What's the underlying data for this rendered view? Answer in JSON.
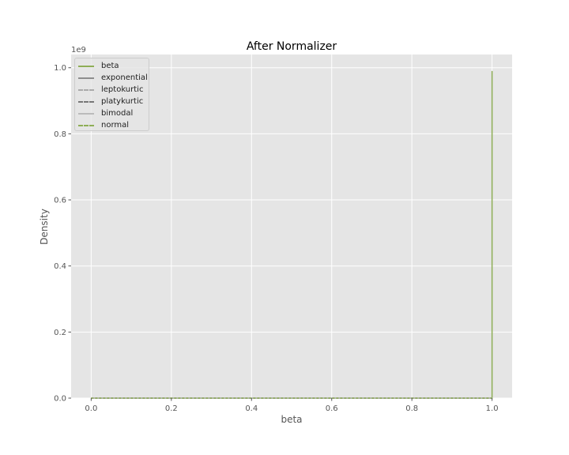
{
  "chart_data": {
    "type": "line",
    "title": "After Normalizer",
    "xlabel": "beta",
    "ylabel": "Density",
    "y_scale_label": "1e9",
    "xlim": [
      -0.05,
      1.05
    ],
    "ylim": [
      0,
      1.04
    ],
    "x_ticks": [
      0.0,
      0.2,
      0.4,
      0.6,
      0.8,
      1.0
    ],
    "x_tick_labels": [
      "0.0",
      "0.2",
      "0.4",
      "0.6",
      "0.8",
      "1.0"
    ],
    "y_ticks": [
      0.0,
      0.2,
      0.4,
      0.6,
      0.8,
      1.0
    ],
    "y_tick_labels": [
      "0.0",
      "0.2",
      "0.4",
      "0.6",
      "0.8",
      "1.0"
    ],
    "grid": true,
    "legend_position": "top-left",
    "series": [
      {
        "name": "beta",
        "color": "#8eae56",
        "dash": "solid",
        "x": [
          0.0,
          0.99999,
          1.0,
          1.00001
        ],
        "y": [
          0.0,
          0.0,
          0.99,
          0.0
        ]
      },
      {
        "name": "exponential",
        "color": "#8d8d8d",
        "dash": "solid",
        "x": [
          0.0,
          1.0
        ],
        "y": [
          0.0,
          0.0
        ]
      },
      {
        "name": "leptokurtic",
        "color": "#aaaaaa",
        "dash": "dashed",
        "x": [
          0.0,
          1.0
        ],
        "y": [
          0.0,
          0.0
        ]
      },
      {
        "name": "platykurtic",
        "color": "#777777",
        "dash": "dashed",
        "x": [
          0.0,
          1.0
        ],
        "y": [
          0.0,
          0.0
        ]
      },
      {
        "name": "bimodal",
        "color": "#bbbbbb",
        "dash": "solid",
        "x": [
          0.0,
          1.0
        ],
        "y": [
          0.0,
          0.0
        ]
      },
      {
        "name": "normal",
        "color": "#8eae56",
        "dash": "dashed",
        "x": [
          0.0,
          1.0
        ],
        "y": [
          0.0,
          0.0
        ]
      }
    ]
  }
}
